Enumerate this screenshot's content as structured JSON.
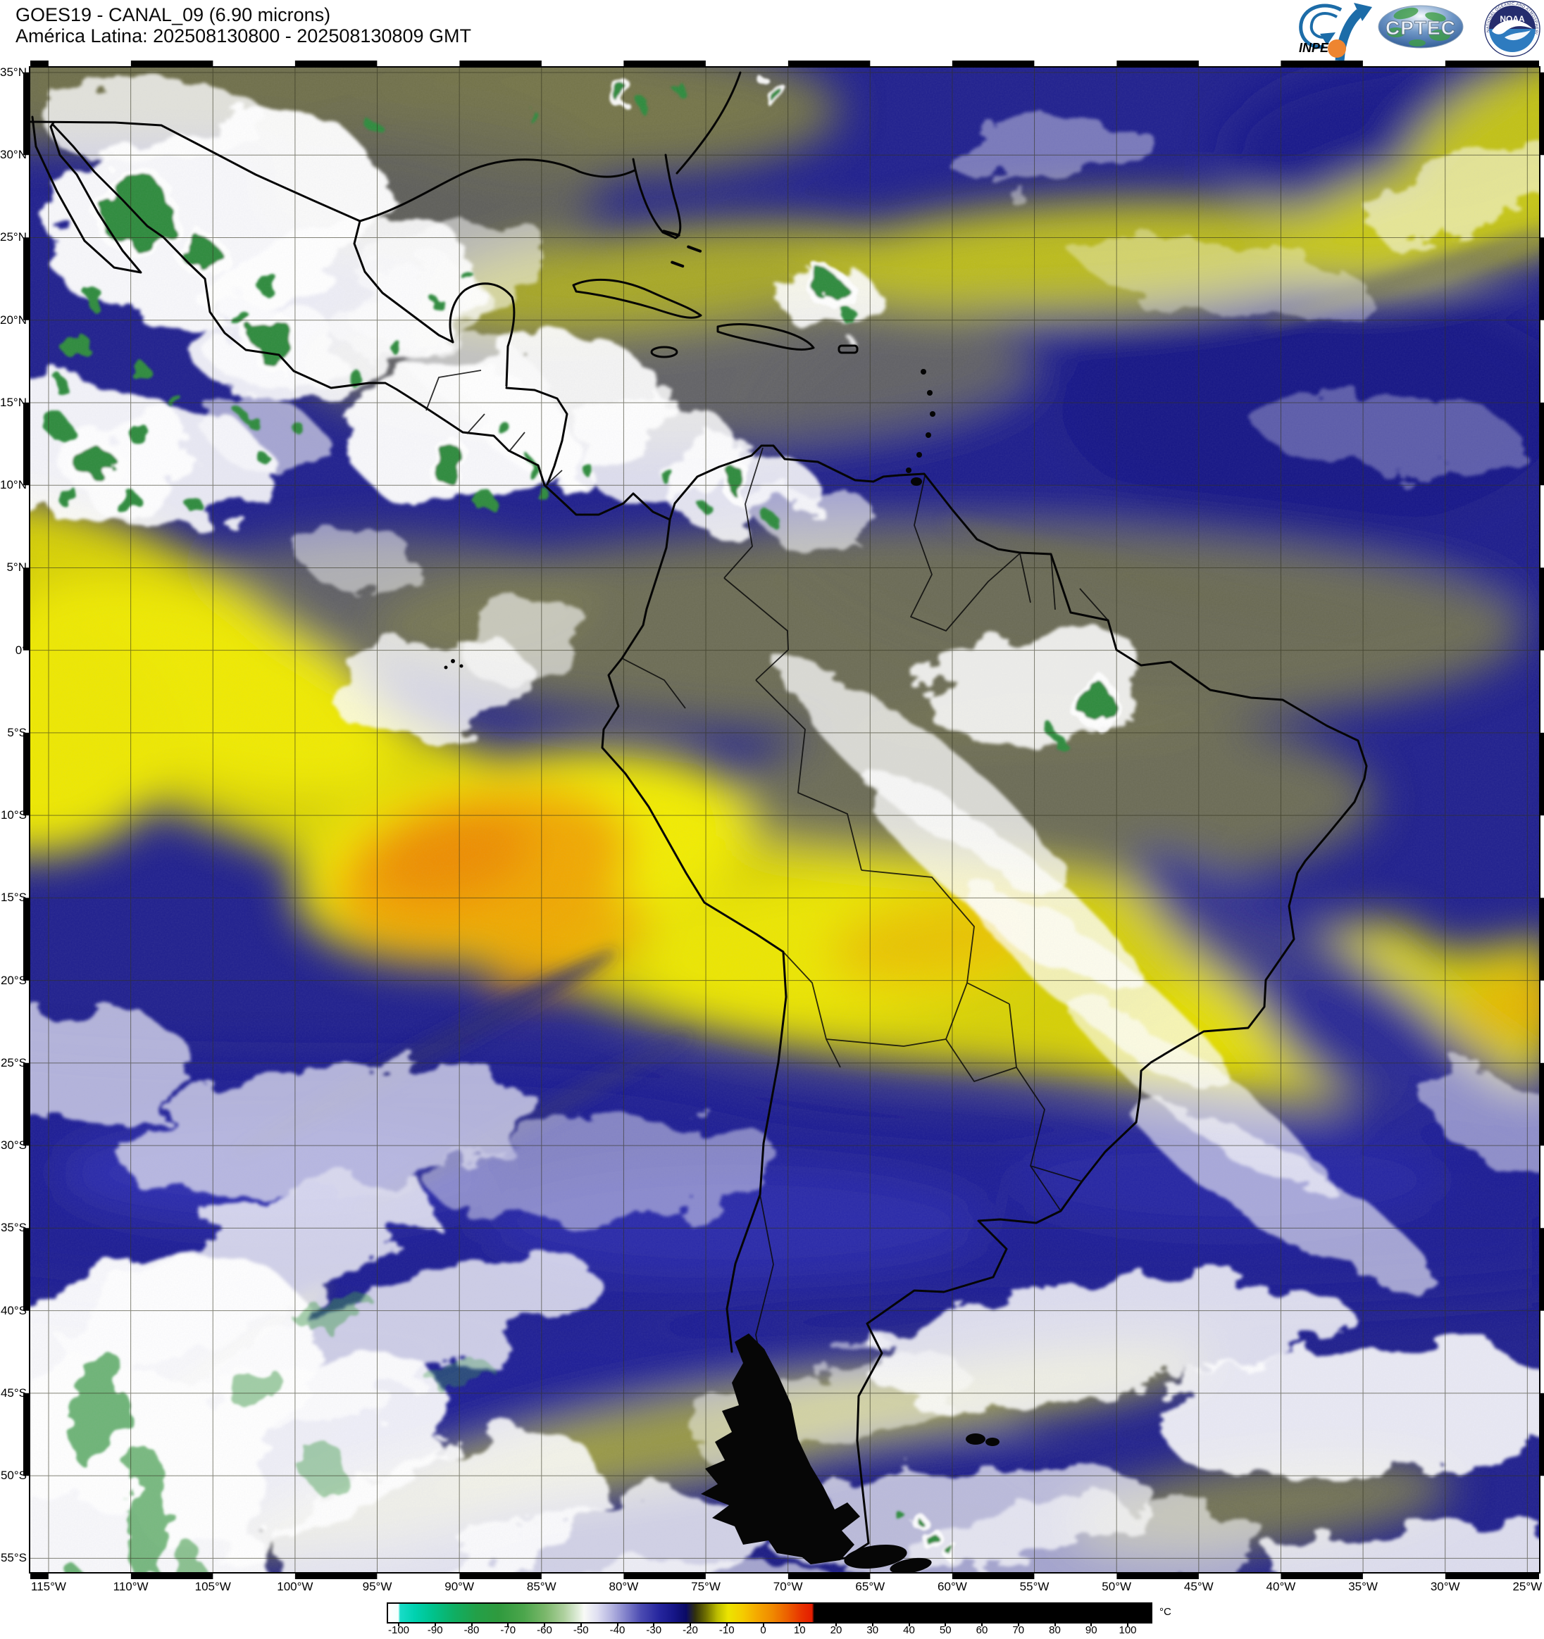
{
  "header": {
    "title_line1": "GOES19 - CANAL_09 (6.90 microns)",
    "title_line2": "América Latina: 202508130800 - 202508130809 GMT"
  },
  "logos": {
    "inpe_label": "INPE",
    "cptec_label": "CPTEC",
    "noaa_label": "NOAA",
    "noaa_ring_text": "NATIONAL OCEANIC AND ATMOSPHERIC ADMINISTRATION"
  },
  "map": {
    "lat_labels": [
      "35°N",
      "30°N",
      "25°N",
      "20°N",
      "15°N",
      "10°N",
      "5°N",
      "0°",
      "5°S",
      "10°S",
      "15°S",
      "20°S",
      "25°S",
      "30°S",
      "35°S",
      "40°S",
      "45°S",
      "50°S",
      "55°S"
    ],
    "lon_labels": [
      "115°W",
      "110°W",
      "105°W",
      "100°W",
      "95°W",
      "90°W",
      "85°W",
      "80°W",
      "75°W",
      "70°W",
      "65°W",
      "60°W",
      "55°W",
      "50°W",
      "45°W",
      "40°W",
      "35°W",
      "30°W",
      "25°W"
    ]
  },
  "colorbar": {
    "unit": "°C",
    "tick_values": [
      -100,
      -90,
      -80,
      -70,
      -60,
      -50,
      -40,
      -30,
      -20,
      -10,
      0,
      10,
      20,
      30,
      40,
      50,
      60,
      70,
      80,
      90,
      100
    ],
    "palette": [
      {
        "t": -104,
        "c": "#ffffff"
      },
      {
        "t": -100.5,
        "c": "#f2fffd"
      },
      {
        "t": -100,
        "c": "#18dcc8"
      },
      {
        "t": -96,
        "c": "#00d2b0"
      },
      {
        "t": -91,
        "c": "#00c28c"
      },
      {
        "t": -85,
        "c": "#10ae62"
      },
      {
        "t": -79,
        "c": "#23a048"
      },
      {
        "t": -73,
        "c": "#2f9a3e"
      },
      {
        "t": -66,
        "c": "#4ca64c"
      },
      {
        "t": -60,
        "c": "#7cb86c"
      },
      {
        "t": -55,
        "c": "#aed09e"
      },
      {
        "t": -51,
        "c": "#e2eedc"
      },
      {
        "t": -49.5,
        "c": "#f8faf6"
      },
      {
        "t": -46,
        "c": "#e0e0f2"
      },
      {
        "t": -42,
        "c": "#b4b4e0"
      },
      {
        "t": -38,
        "c": "#8080ca"
      },
      {
        "t": -34,
        "c": "#4c4cb2"
      },
      {
        "t": -29,
        "c": "#26269e"
      },
      {
        "t": -25,
        "c": "#161688"
      },
      {
        "t": -21.5,
        "c": "#0a0a64"
      },
      {
        "t": -19,
        "c": "#32320c"
      },
      {
        "t": -16,
        "c": "#727200"
      },
      {
        "t": -13,
        "c": "#bcbc00"
      },
      {
        "t": -10,
        "c": "#ece400"
      },
      {
        "t": -6,
        "c": "#f4cc00"
      },
      {
        "t": -2,
        "c": "#f4a800"
      },
      {
        "t": 2,
        "c": "#f08a00"
      },
      {
        "t": 6,
        "c": "#ec6200"
      },
      {
        "t": 10,
        "c": "#e83400"
      },
      {
        "t": 13,
        "c": "#e41c00"
      },
      {
        "t": 13.6,
        "c": "#000000"
      },
      {
        "t": 106,
        "c": "#000000"
      }
    ]
  }
}
